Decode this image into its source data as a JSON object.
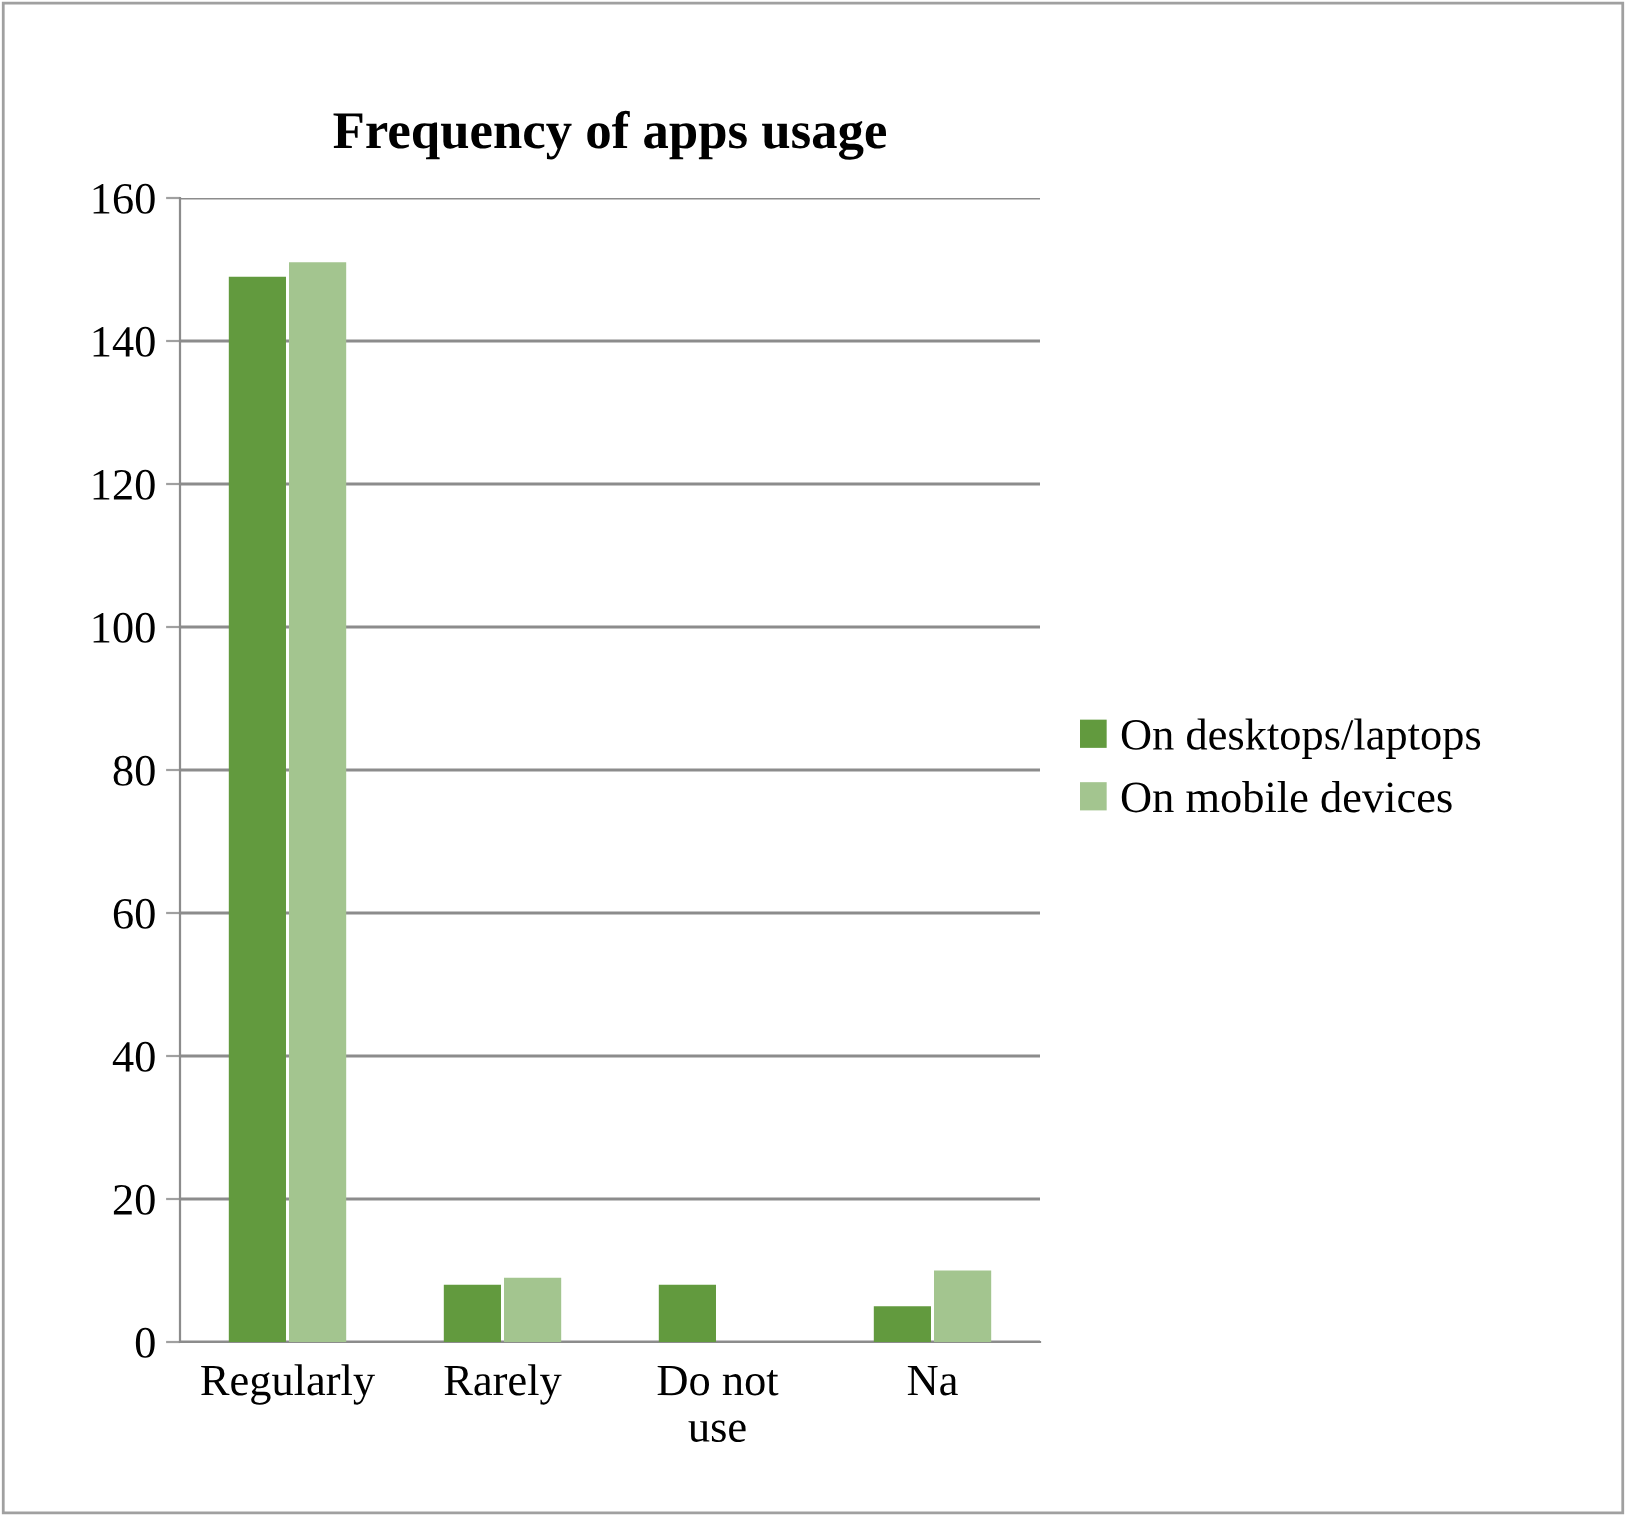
{
  "chart_data": {
    "type": "bar",
    "title": "Frequency of apps usage",
    "categories": [
      "Regularly",
      "Rarely",
      "Do not\nuse",
      "Na"
    ],
    "series": [
      {
        "name": "On desktops/laptops",
        "color": "#629a3e",
        "values": [
          149,
          8,
          8,
          5
        ]
      },
      {
        "name": "On mobile devices",
        "color": "#a3c58f",
        "values": [
          151,
          9,
          0,
          10
        ]
      }
    ],
    "ylim": [
      0,
      160
    ],
    "yticks": [
      0,
      20,
      40,
      60,
      80,
      100,
      120,
      140,
      160
    ],
    "grid": "y",
    "legend": "right"
  }
}
